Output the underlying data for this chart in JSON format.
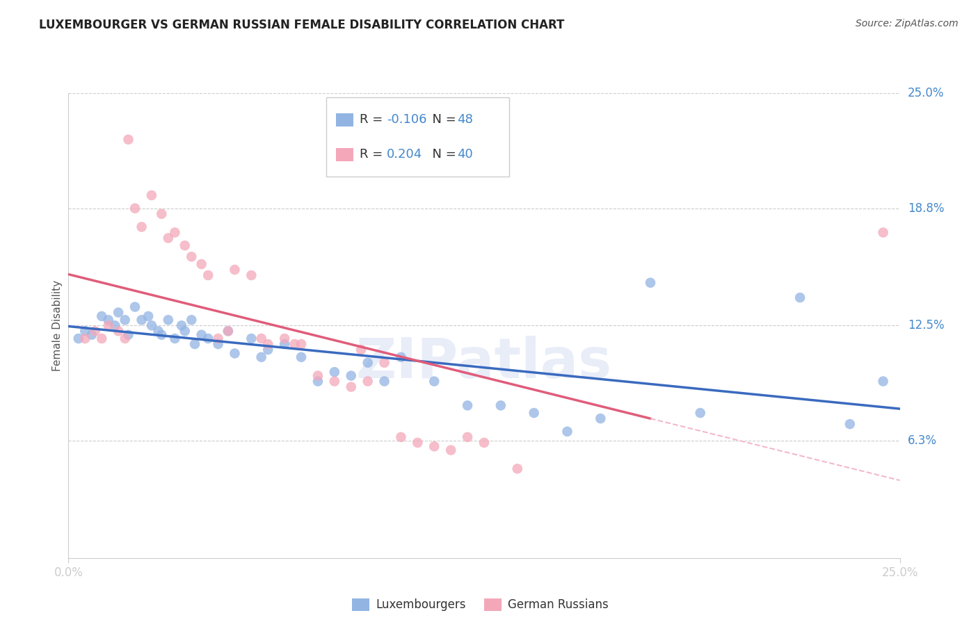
{
  "title": "LUXEMBOURGER VS GERMAN RUSSIAN FEMALE DISABILITY CORRELATION CHART",
  "source": "Source: ZipAtlas.com",
  "ylabel": "Female Disability",
  "xlim": [
    0.0,
    0.25
  ],
  "ylim": [
    0.0,
    0.25
  ],
  "y_tick_labels_right": [
    "25.0%",
    "18.8%",
    "12.5%",
    "6.3%"
  ],
  "y_tick_vals_right": [
    0.25,
    0.188,
    0.125,
    0.063
  ],
  "r_lux": -0.106,
  "n_lux": 48,
  "r_ger": 0.204,
  "n_ger": 40,
  "lux_color": "#92b4e3",
  "ger_color": "#f4a7b9",
  "lux_line_color": "#3a6abf",
  "ger_line_color": "#e05c7a",
  "ger_dashed_color": "#f4b8c8",
  "watermark": "ZIPatlas",
  "lux_points": [
    [
      0.003,
      0.118
    ],
    [
      0.005,
      0.122
    ],
    [
      0.007,
      0.12
    ],
    [
      0.01,
      0.13
    ],
    [
      0.012,
      0.128
    ],
    [
      0.014,
      0.125
    ],
    [
      0.015,
      0.132
    ],
    [
      0.017,
      0.128
    ],
    [
      0.018,
      0.12
    ],
    [
      0.02,
      0.135
    ],
    [
      0.022,
      0.128
    ],
    [
      0.024,
      0.13
    ],
    [
      0.025,
      0.125
    ],
    [
      0.027,
      0.122
    ],
    [
      0.028,
      0.12
    ],
    [
      0.03,
      0.128
    ],
    [
      0.032,
      0.118
    ],
    [
      0.034,
      0.125
    ],
    [
      0.035,
      0.122
    ],
    [
      0.037,
      0.128
    ],
    [
      0.038,
      0.115
    ],
    [
      0.04,
      0.12
    ],
    [
      0.042,
      0.118
    ],
    [
      0.045,
      0.115
    ],
    [
      0.048,
      0.122
    ],
    [
      0.05,
      0.11
    ],
    [
      0.055,
      0.118
    ],
    [
      0.058,
      0.108
    ],
    [
      0.06,
      0.112
    ],
    [
      0.065,
      0.115
    ],
    [
      0.07,
      0.108
    ],
    [
      0.075,
      0.095
    ],
    [
      0.08,
      0.1
    ],
    [
      0.085,
      0.098
    ],
    [
      0.09,
      0.105
    ],
    [
      0.095,
      0.095
    ],
    [
      0.1,
      0.108
    ],
    [
      0.11,
      0.095
    ],
    [
      0.12,
      0.082
    ],
    [
      0.13,
      0.082
    ],
    [
      0.14,
      0.078
    ],
    [
      0.15,
      0.068
    ],
    [
      0.16,
      0.075
    ],
    [
      0.175,
      0.148
    ],
    [
      0.19,
      0.078
    ],
    [
      0.22,
      0.14
    ],
    [
      0.235,
      0.072
    ],
    [
      0.245,
      0.095
    ]
  ],
  "ger_points": [
    [
      0.005,
      0.118
    ],
    [
      0.008,
      0.122
    ],
    [
      0.01,
      0.118
    ],
    [
      0.012,
      0.125
    ],
    [
      0.015,
      0.122
    ],
    [
      0.017,
      0.118
    ],
    [
      0.018,
      0.225
    ],
    [
      0.02,
      0.188
    ],
    [
      0.022,
      0.178
    ],
    [
      0.025,
      0.195
    ],
    [
      0.028,
      0.185
    ],
    [
      0.03,
      0.172
    ],
    [
      0.032,
      0.175
    ],
    [
      0.035,
      0.168
    ],
    [
      0.037,
      0.162
    ],
    [
      0.04,
      0.158
    ],
    [
      0.042,
      0.152
    ],
    [
      0.045,
      0.118
    ],
    [
      0.048,
      0.122
    ],
    [
      0.05,
      0.155
    ],
    [
      0.055,
      0.152
    ],
    [
      0.058,
      0.118
    ],
    [
      0.06,
      0.115
    ],
    [
      0.065,
      0.118
    ],
    [
      0.068,
      0.115
    ],
    [
      0.07,
      0.115
    ],
    [
      0.075,
      0.098
    ],
    [
      0.08,
      0.095
    ],
    [
      0.085,
      0.092
    ],
    [
      0.088,
      0.112
    ],
    [
      0.09,
      0.095
    ],
    [
      0.095,
      0.105
    ],
    [
      0.1,
      0.065
    ],
    [
      0.105,
      0.062
    ],
    [
      0.11,
      0.06
    ],
    [
      0.115,
      0.058
    ],
    [
      0.12,
      0.065
    ],
    [
      0.125,
      0.062
    ],
    [
      0.135,
      0.048
    ],
    [
      0.245,
      0.175
    ]
  ]
}
